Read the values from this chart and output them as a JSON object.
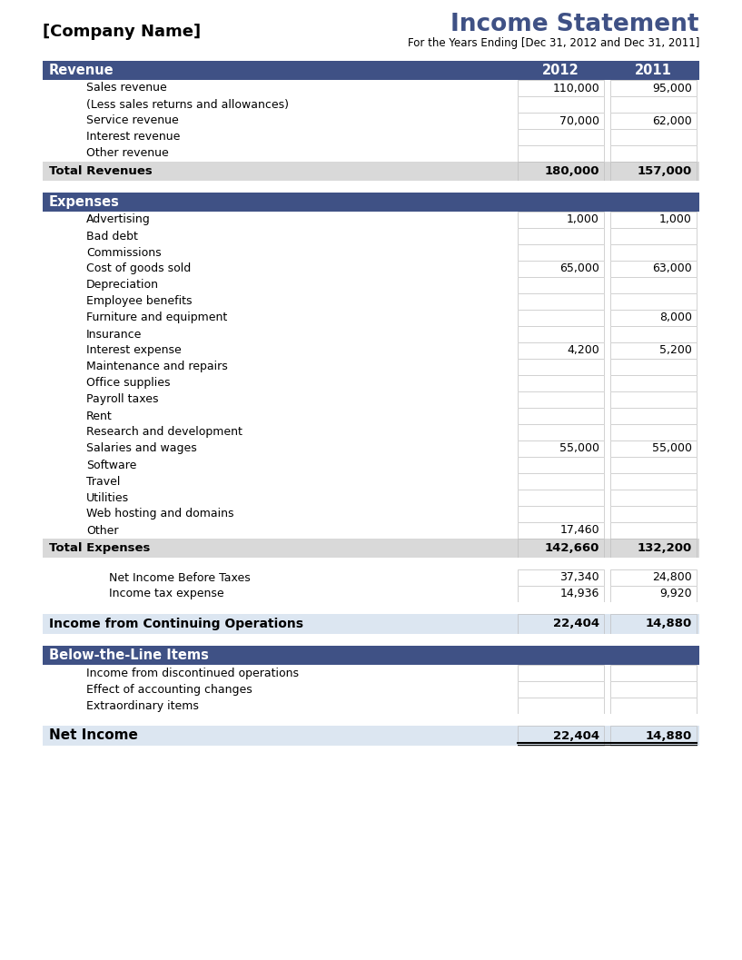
{
  "company_name": "[Company Name]",
  "title": "Income Statement",
  "subtitle": "For the Years Ending [Dec 31, 2012 and Dec 31, 2011]",
  "col_year1": "2012",
  "col_year2": "2011",
  "header_bg": "#3F5185",
  "header_fg": "#FFFFFF",
  "total_bg": "#D9D9D9",
  "net_income_bg": "#DCE6F1",
  "cell_border": "#BFBFBF",
  "rows": [
    {
      "type": "section_header",
      "label": "Revenue",
      "v2012": "",
      "v2011": ""
    },
    {
      "type": "item",
      "label": "Sales revenue",
      "v2012": "110,000",
      "v2011": "95,000"
    },
    {
      "type": "item",
      "label": "(Less sales returns and allowances)",
      "v2012": "",
      "v2011": ""
    },
    {
      "type": "item",
      "label": "Service revenue",
      "v2012": "70,000",
      "v2011": "62,000"
    },
    {
      "type": "item",
      "label": "Interest revenue",
      "v2012": "",
      "v2011": ""
    },
    {
      "type": "item",
      "label": "Other revenue",
      "v2012": "",
      "v2011": ""
    },
    {
      "type": "total",
      "label": "Total Revenues",
      "v2012": "180,000",
      "v2011": "157,000"
    },
    {
      "type": "spacer",
      "label": "",
      "v2012": "",
      "v2011": ""
    },
    {
      "type": "section_header",
      "label": "Expenses",
      "v2012": "",
      "v2011": ""
    },
    {
      "type": "item",
      "label": "Advertising",
      "v2012": "1,000",
      "v2011": "1,000"
    },
    {
      "type": "item",
      "label": "Bad debt",
      "v2012": "",
      "v2011": ""
    },
    {
      "type": "item",
      "label": "Commissions",
      "v2012": "",
      "v2011": ""
    },
    {
      "type": "item",
      "label": "Cost of goods sold",
      "v2012": "65,000",
      "v2011": "63,000"
    },
    {
      "type": "item",
      "label": "Depreciation",
      "v2012": "",
      "v2011": ""
    },
    {
      "type": "item",
      "label": "Employee benefits",
      "v2012": "",
      "v2011": ""
    },
    {
      "type": "item",
      "label": "Furniture and equipment",
      "v2012": "",
      "v2011": "8,000"
    },
    {
      "type": "item",
      "label": "Insurance",
      "v2012": "",
      "v2011": ""
    },
    {
      "type": "item",
      "label": "Interest expense",
      "v2012": "4,200",
      "v2011": "5,200"
    },
    {
      "type": "item",
      "label": "Maintenance and repairs",
      "v2012": "",
      "v2011": ""
    },
    {
      "type": "item",
      "label": "Office supplies",
      "v2012": "",
      "v2011": ""
    },
    {
      "type": "item",
      "label": "Payroll taxes",
      "v2012": "",
      "v2011": ""
    },
    {
      "type": "item",
      "label": "Rent",
      "v2012": "",
      "v2011": ""
    },
    {
      "type": "item",
      "label": "Research and development",
      "v2012": "",
      "v2011": ""
    },
    {
      "type": "item",
      "label": "Salaries and wages",
      "v2012": "55,000",
      "v2011": "55,000"
    },
    {
      "type": "item",
      "label": "Software",
      "v2012": "",
      "v2011": ""
    },
    {
      "type": "item",
      "label": "Travel",
      "v2012": "",
      "v2011": ""
    },
    {
      "type": "item",
      "label": "Utilities",
      "v2012": "",
      "v2011": ""
    },
    {
      "type": "item",
      "label": "Web hosting and domains",
      "v2012": "",
      "v2011": ""
    },
    {
      "type": "item",
      "label": "Other",
      "v2012": "17,460",
      "v2011": ""
    },
    {
      "type": "total",
      "label": "Total Expenses",
      "v2012": "142,660",
      "v2011": "132,200"
    },
    {
      "type": "spacer",
      "label": "",
      "v2012": "",
      "v2011": ""
    },
    {
      "type": "subtotal_item",
      "label": "Net Income Before Taxes",
      "v2012": "37,340",
      "v2011": "24,800"
    },
    {
      "type": "subtotal_item",
      "label": "Income tax expense",
      "v2012": "14,936",
      "v2011": "9,920"
    },
    {
      "type": "spacer",
      "label": "",
      "v2012": "",
      "v2011": ""
    },
    {
      "type": "continuing",
      "label": "Income from Continuing Operations",
      "v2012": "22,404",
      "v2011": "14,880"
    },
    {
      "type": "spacer",
      "label": "",
      "v2012": "",
      "v2011": ""
    },
    {
      "type": "section_header",
      "label": "Below-the-Line Items",
      "v2012": "",
      "v2011": ""
    },
    {
      "type": "item",
      "label": "Income from discontinued operations",
      "v2012": "",
      "v2011": ""
    },
    {
      "type": "item",
      "label": "Effect of accounting changes",
      "v2012": "",
      "v2011": ""
    },
    {
      "type": "item",
      "label": "Extraordinary items",
      "v2012": "",
      "v2011": ""
    },
    {
      "type": "spacer",
      "label": "",
      "v2012": "",
      "v2011": ""
    },
    {
      "type": "net_income",
      "label": "Net Income",
      "v2012": "22,404",
      "v2011": "14,880"
    }
  ]
}
